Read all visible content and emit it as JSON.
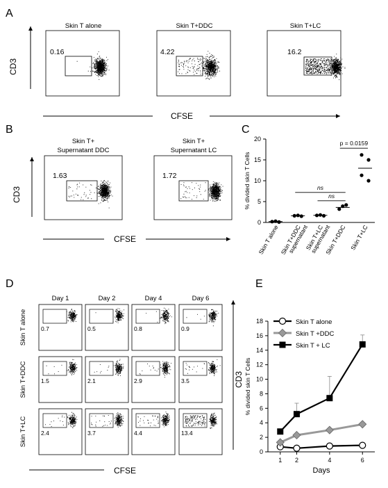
{
  "panels": {
    "A": {
      "label": "A",
      "plots": [
        {
          "title": "Skin T alone",
          "gate_value": "0.16"
        },
        {
          "title": "Skin T+DDC",
          "gate_value": "4.22"
        },
        {
          "title": "Skin T+LC",
          "gate_value": "16.2"
        }
      ],
      "y_axis_label": "CD3",
      "x_axis_label": "CFSE"
    },
    "B": {
      "label": "B",
      "plots": [
        {
          "title_line1": "Skin T+",
          "title_line2": "Supernatant DDC",
          "gate_value": "1.63"
        },
        {
          "title_line1": "Skin T+",
          "title_line2": "Supernatant LC",
          "gate_value": "1.72"
        }
      ],
      "y_axis_label": "CD3",
      "x_axis_label": "CFSE"
    },
    "C": {
      "label": "C",
      "chart_data": {
        "type": "scatter",
        "ylabel": "% divided skin T Cells",
        "ylim": [
          0,
          20
        ],
        "yticks": [
          "0",
          "5",
          "10",
          "15",
          "20"
        ],
        "groups": [
          {
            "label_lines": [
              "Skin T alone"
            ],
            "values": [
              0.2,
              0.3,
              0.1
            ],
            "mean": 0.2
          },
          {
            "label_lines": [
              "Skin T+DDC",
              "supernatant"
            ],
            "values": [
              1.6,
              1.7,
              1.5
            ],
            "mean": 1.6
          },
          {
            "label_lines": [
              "Skin T+LC",
              "supernatant"
            ],
            "values": [
              1.7,
              1.8,
              1.6
            ],
            "mean": 1.7
          },
          {
            "label_lines": [
              "Skin T+DDC"
            ],
            "values": [
              3.2,
              3.9,
              4.2
            ],
            "mean": 3.6
          },
          {
            "label_lines": [
              "Skin T+LC"
            ],
            "values": [
              16.2,
              15.0,
              11.3,
              10.0
            ],
            "mean": 13.0
          }
        ],
        "annotations": [
          {
            "text": "ns",
            "from": 1,
            "to": 3,
            "y": 7.2
          },
          {
            "text": "ns",
            "from": 2,
            "to": 3,
            "y": 5.2
          },
          {
            "text": "p = 0.0159",
            "from": 3,
            "to": 4,
            "y": 17.8
          }
        ]
      }
    },
    "D": {
      "label": "D",
      "columns": [
        "Day 1",
        "Day 2",
        "Day 4",
        "Day 6"
      ],
      "rows": [
        {
          "label": "Skin T alone",
          "values": [
            "0.7",
            "0.5",
            "0.8",
            "0.9"
          ]
        },
        {
          "label": "Skin T+DDC",
          "values": [
            "1.5",
            "2.1",
            "2.9",
            "3.5"
          ]
        },
        {
          "label": "Skin T+LC",
          "values": [
            "2.4",
            "3.7",
            "4.4",
            "13.4"
          ]
        }
      ],
      "y_axis_label": "CD3",
      "x_axis_label": "CFSE"
    },
    "E": {
      "label": "E",
      "chart_data": {
        "type": "line",
        "xlabel": "Days",
        "ylabel": "% divided skin T Cells",
        "x": [
          1,
          2,
          4,
          6
        ],
        "xlim": [
          0.25,
          6.75
        ],
        "ylim": [
          0,
          18
        ],
        "yticks": [
          "0",
          "2",
          "4",
          "6",
          "8",
          "10",
          "12",
          "14",
          "16",
          "18"
        ],
        "xticks": [
          "1",
          "2",
          "4",
          "6"
        ],
        "legend_position": "top-left",
        "series": [
          {
            "name": "Skin T alone",
            "marker": "circle-open",
            "color": "#000000",
            "values": [
              0.7,
              0.5,
              0.8,
              0.9
            ],
            "errors": [
              0,
              0,
              0,
              0
            ]
          },
          {
            "name": "Skin T +DDC",
            "marker": "diamond-gray",
            "color": "#999999",
            "values": [
              1.3,
              2.3,
              3.0,
              3.8
            ],
            "errors": [
              0,
              0,
              0,
              0
            ]
          },
          {
            "name": "Skin T + LC",
            "marker": "square-filled",
            "color": "#000000",
            "values": [
              2.8,
              5.2,
              7.4,
              14.8
            ],
            "errors": [
              0,
              1.5,
              3.0,
              1.3
            ]
          }
        ]
      }
    }
  }
}
